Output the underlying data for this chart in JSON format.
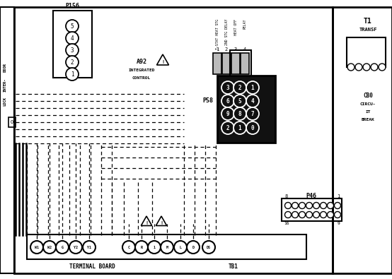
{
  "bg_color": "#ffffff",
  "line_color": "#000000",
  "figsize": [
    5.54,
    3.95
  ],
  "dpi": 100,
  "p156_labels": [
    "5",
    "4",
    "3",
    "2",
    "1"
  ],
  "tb_labels": [
    "W1",
    "W2",
    "G",
    "Y2",
    "Y1",
    "C",
    "R",
    "1",
    "M",
    "L",
    "D",
    "DS"
  ],
  "p58_rows": [
    [
      "3",
      "2",
      "1"
    ],
    [
      "6",
      "5",
      "4"
    ],
    [
      "9",
      "8",
      "7"
    ],
    [
      "2",
      "1",
      "0"
    ]
  ],
  "relay_labels": [
    "T-STAT HEAT STG",
    "2ND STG DELAY",
    "HEAT OFF",
    "RELAY"
  ]
}
